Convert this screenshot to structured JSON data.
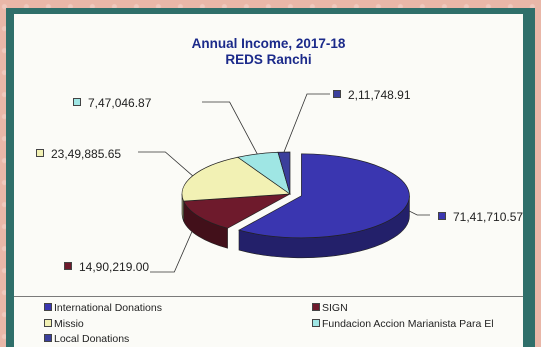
{
  "chart_data": {
    "type": "pie",
    "title": "Annual Income, 2017-18",
    "subtitle": "REDS Ranchi",
    "slices": [
      {
        "name": "International Donations",
        "value": 7141710.57,
        "label": "71,41,710.57",
        "color": "#3a36b0"
      },
      {
        "name": "SIGN",
        "value": 1490219.0,
        "label": "14,90,219.00",
        "color": "#6e1a2c"
      },
      {
        "name": "Missio",
        "value": 2349885.65,
        "label": "23,49,885.65",
        "color": "#f2f1b4"
      },
      {
        "name": "Fundacion Accion Marianista Para El",
        "value": 747046.87,
        "label": "7,47,046.87",
        "color": "#9fe6e4"
      },
      {
        "name": "Local Donations",
        "value": 211748.91,
        "label": "2,11,748.91",
        "color": "#3b3f9c"
      }
    ]
  },
  "legend": {
    "items": [
      {
        "label": "International Donations",
        "color": "#3a36b0"
      },
      {
        "label": "SIGN",
        "color": "#6e1a2c"
      },
      {
        "label": "Missio",
        "color": "#f2f1b4"
      },
      {
        "label": "Fundacion Accion Marianista Para El",
        "color": "#9fe6e4"
      },
      {
        "label": "Local Donations",
        "color": "#3b3f9c"
      }
    ]
  }
}
